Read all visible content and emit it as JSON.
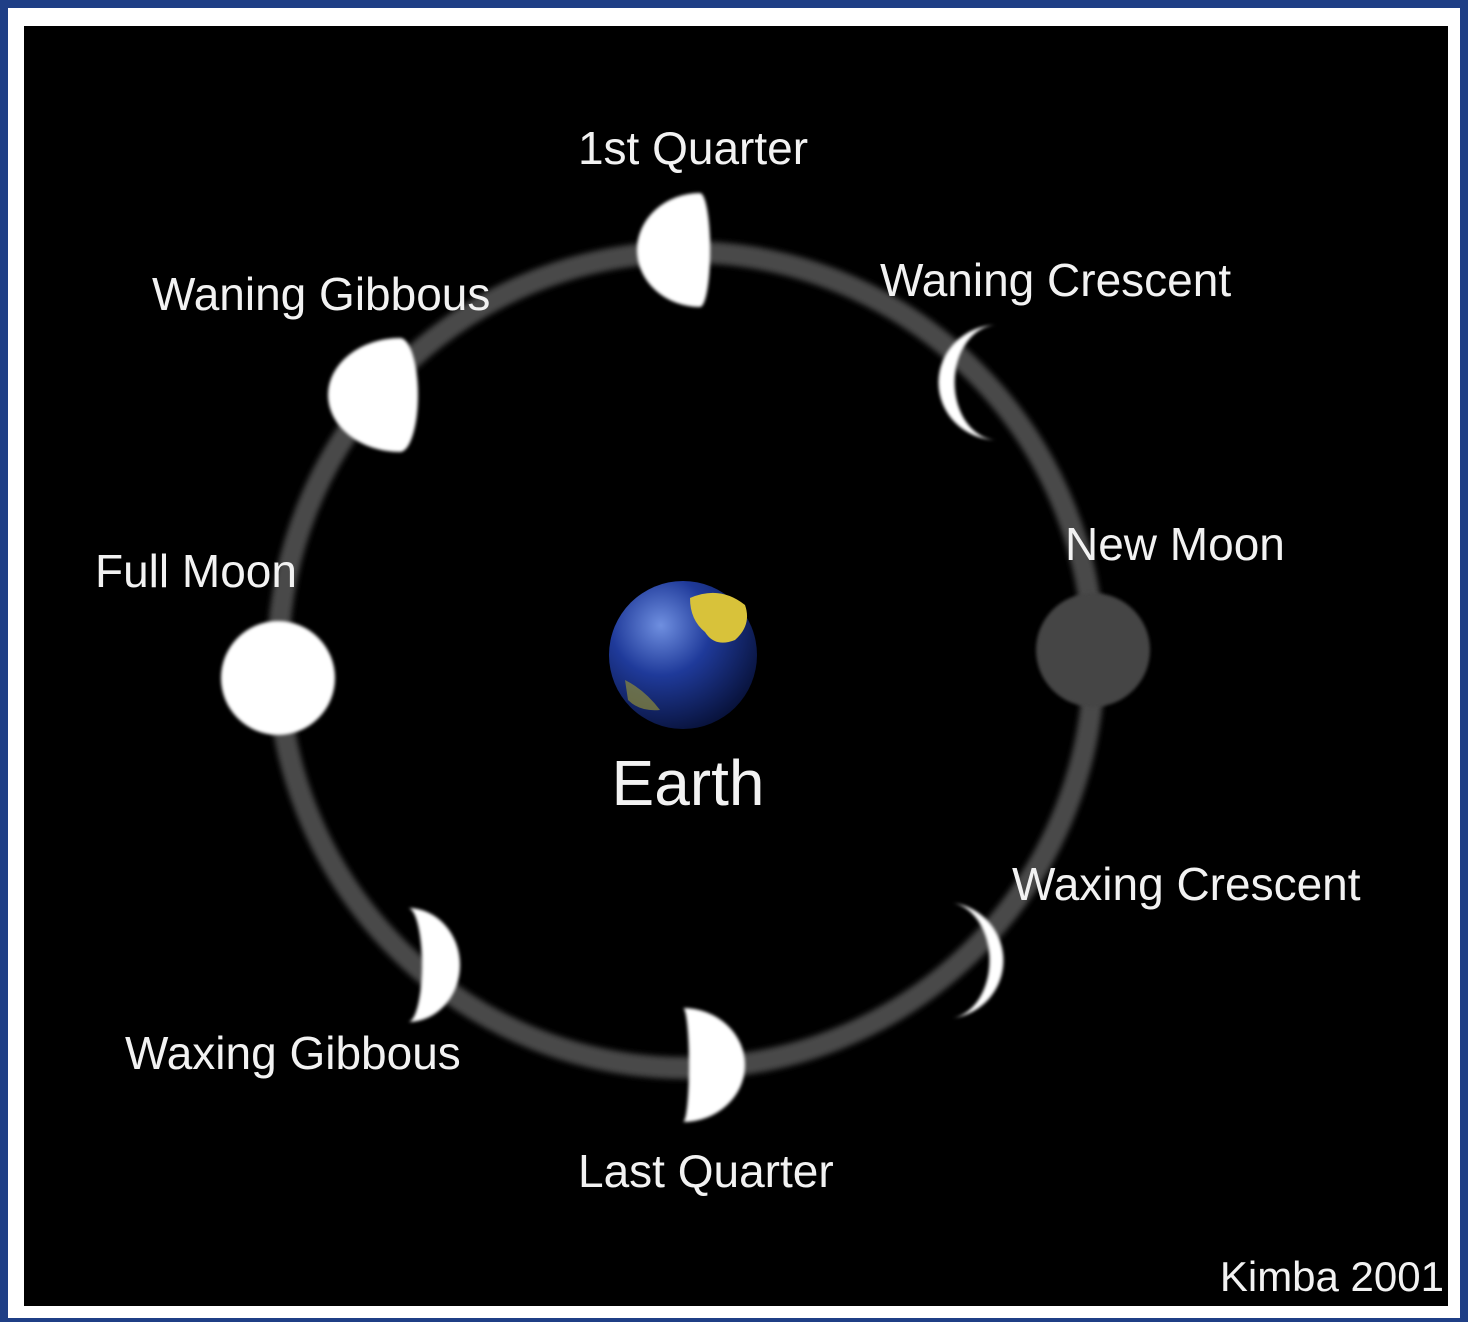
{
  "nodes": [
    {
      "label": "1st Quarter"
    },
    {
      "label": "Waning Gibbous"
    },
    {
      "label": "Waning Crescent"
    },
    {
      "label": "New Moon"
    },
    {
      "label": "Full Moon"
    },
    {
      "label": "Waxing Crescent"
    },
    {
      "label": "Waxing Gibbous"
    },
    {
      "label": "Last Quarter"
    }
  ],
  "center": {
    "label": "Earth"
  },
  "credit": "Kimba 2001"
}
